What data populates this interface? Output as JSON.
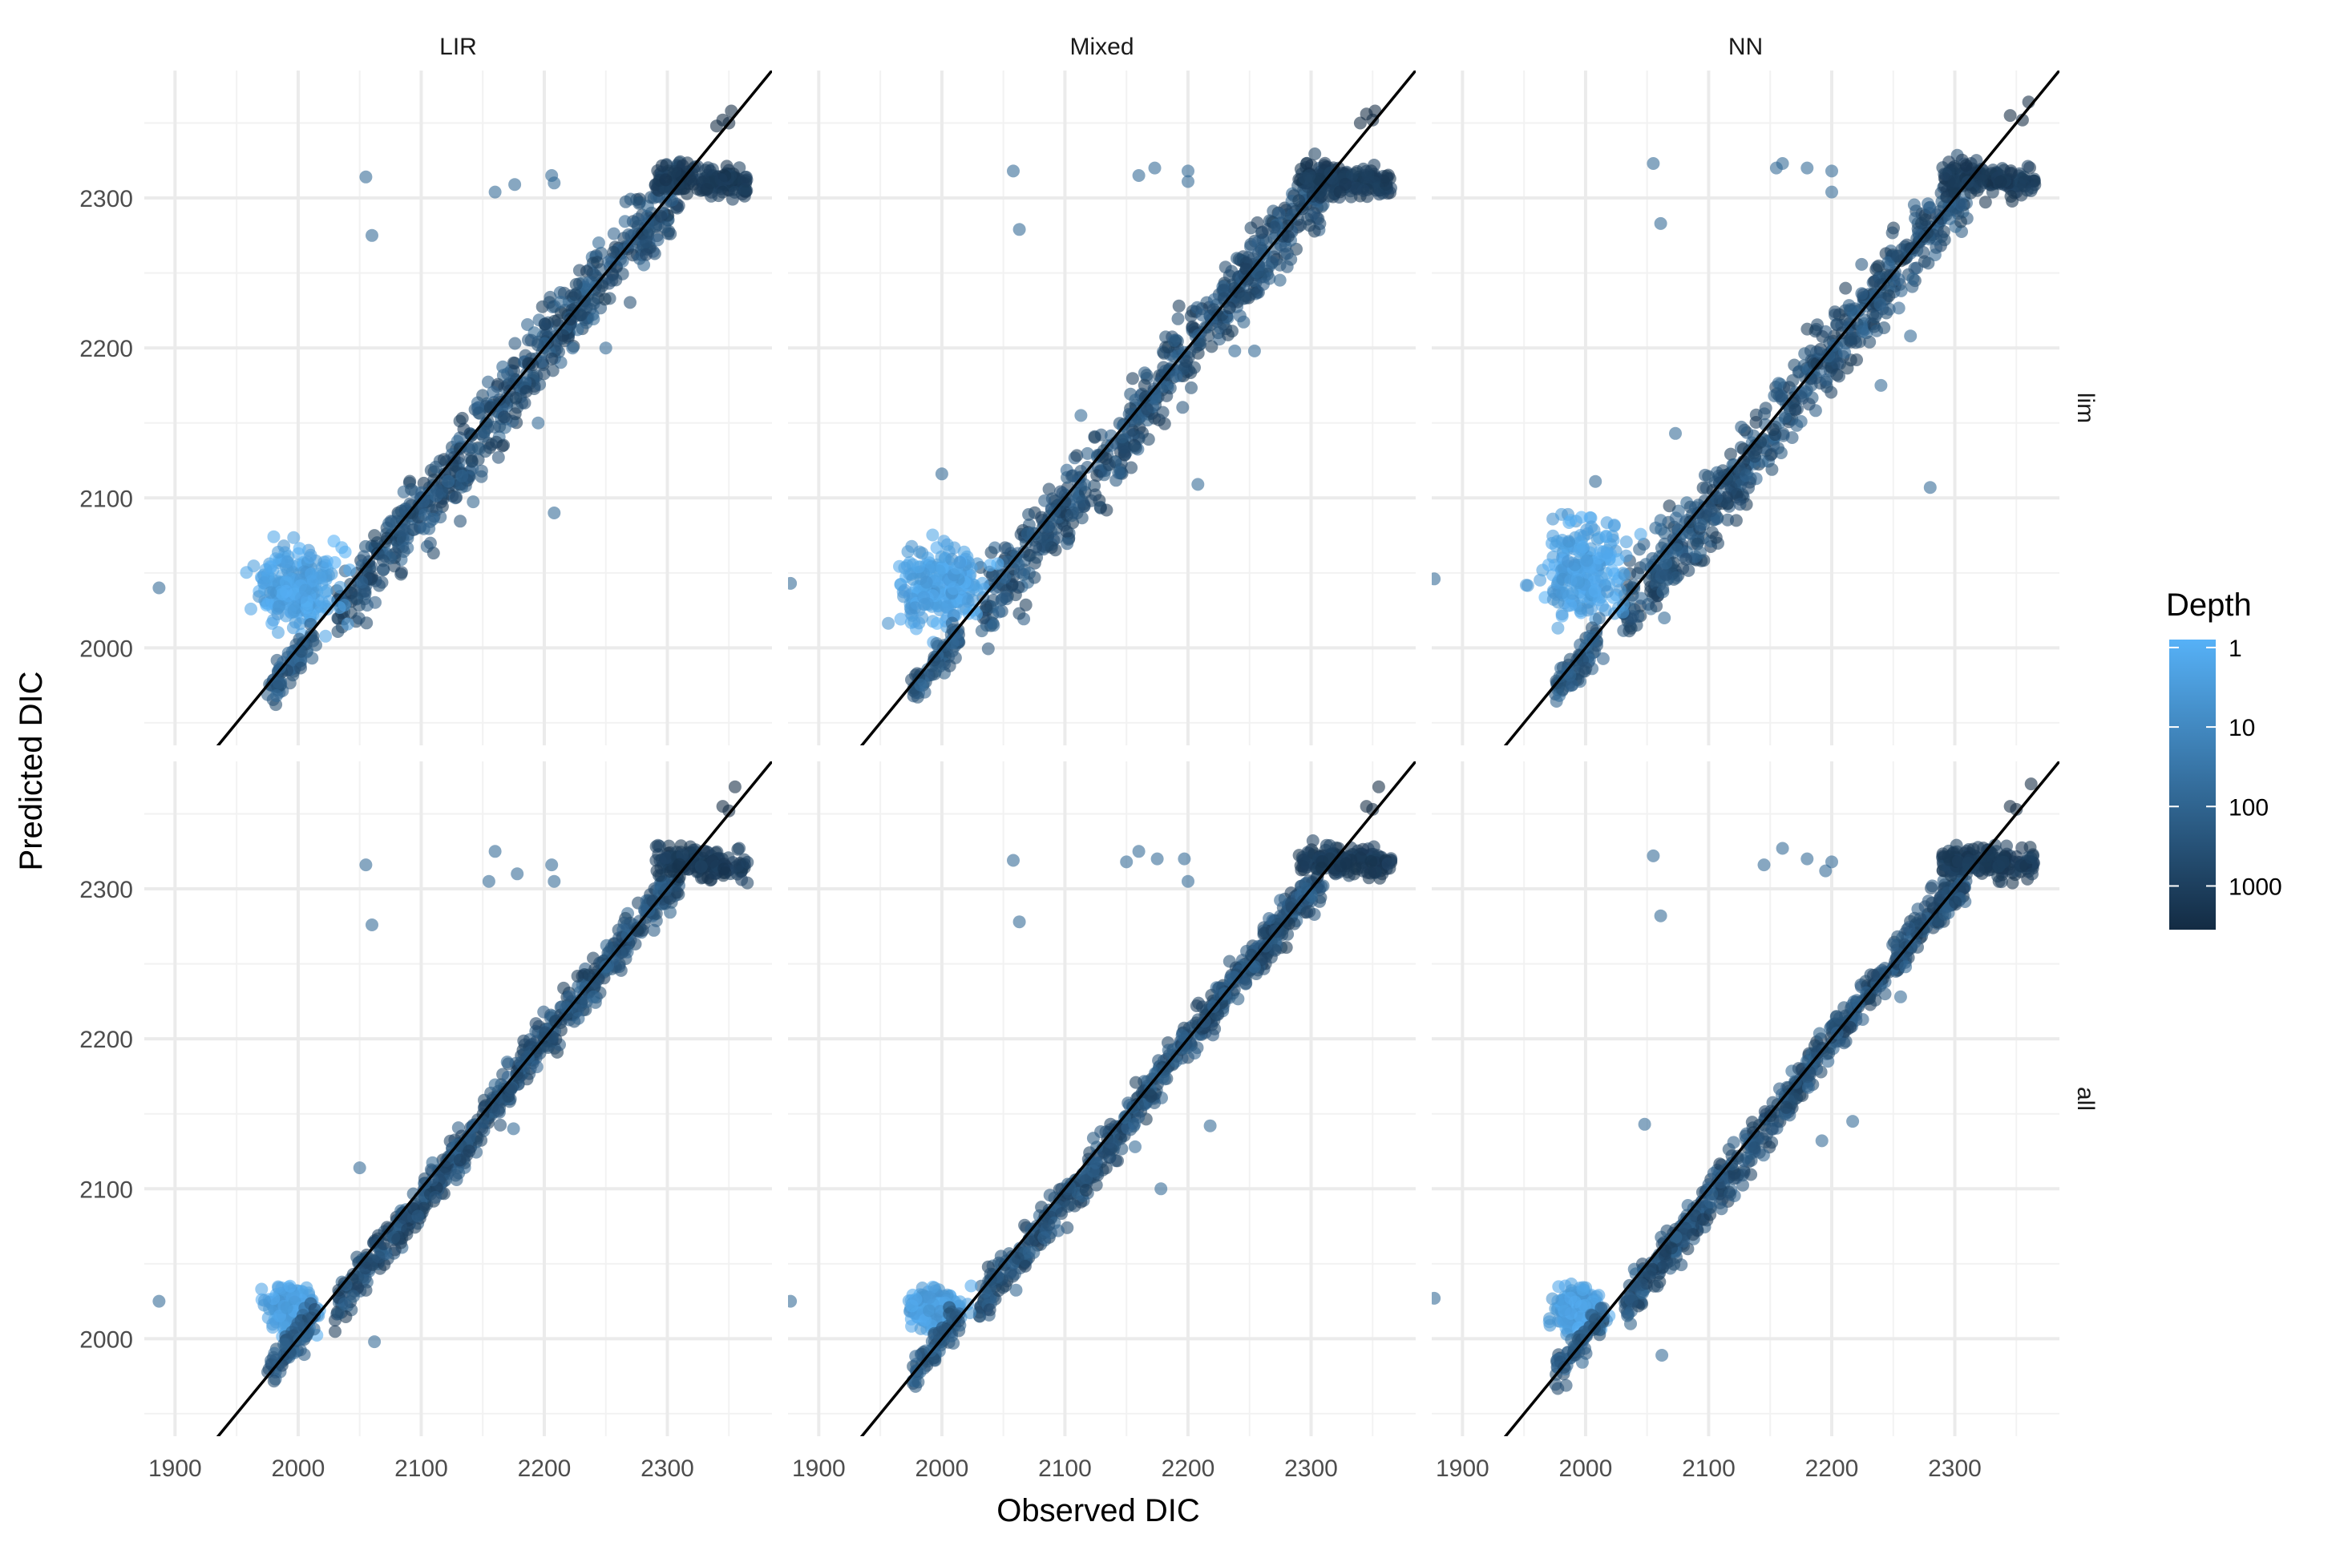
{
  "chart_data": {
    "type": "scatter",
    "facet_columns": [
      "LIR",
      "Mixed",
      "NN"
    ],
    "facet_rows": [
      "lim",
      "all"
    ],
    "xlabel": "Observed DIC",
    "ylabel": "Predicted DIC",
    "x_ticks": [
      1900,
      2000,
      2100,
      2200,
      2300
    ],
    "y_ticks": [
      2000,
      2100,
      2200,
      2300
    ],
    "xlim": [
      1875,
      2385
    ],
    "ylim": [
      1935,
      2385
    ],
    "reference_line": "y = x",
    "grid": true,
    "legend": {
      "title": "Depth",
      "position": "right",
      "scale": "log",
      "ticks": [
        1,
        10,
        100,
        1000
      ],
      "color_low": "#56B1F7",
      "color_high": "#132B43"
    },
    "panels": [
      {
        "column": "LIR",
        "row": "lim",
        "outliers": [
          [
            1887,
            2040
          ],
          [
            2055,
            2314
          ],
          [
            2060,
            2275
          ],
          [
            2160,
            2304
          ],
          [
            2176,
            2309
          ],
          [
            2206,
            2315
          ],
          [
            2208,
            2310
          ],
          [
            2122,
            2111
          ],
          [
            2208,
            2090
          ],
          [
            2223,
            2200
          ],
          [
            2250,
            2200
          ],
          [
            2195,
            2150
          ]
        ],
        "points": [
          [
            2345,
            2352
          ],
          [
            2350,
            2350
          ],
          [
            2352,
            2358
          ],
          [
            2340,
            2348
          ]
        ]
      },
      {
        "column": "Mixed",
        "row": "lim",
        "outliers": [
          [
            1877,
            2043
          ],
          [
            2058,
            2318
          ],
          [
            2063,
            2279
          ],
          [
            2160,
            2315
          ],
          [
            2173,
            2320
          ],
          [
            2200,
            2318
          ],
          [
            2200,
            2311
          ],
          [
            2113,
            2155
          ],
          [
            2147,
            2148
          ],
          [
            2208,
            2109
          ],
          [
            2238,
            2198
          ],
          [
            2254,
            2198
          ],
          [
            2042,
            2015
          ],
          [
            2000,
            2116
          ]
        ],
        "points": [
          [
            2345,
            2356
          ],
          [
            2350,
            2352
          ],
          [
            2352,
            2358
          ],
          [
            2340,
            2350
          ]
        ]
      },
      {
        "column": "NN",
        "row": "lim",
        "outliers": [
          [
            1877,
            2046
          ],
          [
            2055,
            2323
          ],
          [
            2061,
            2283
          ],
          [
            2155,
            2320
          ],
          [
            2160,
            2323
          ],
          [
            2180,
            2320
          ],
          [
            2200,
            2318
          ],
          [
            2200,
            2304
          ],
          [
            2073,
            2143
          ],
          [
            2008,
            2111
          ],
          [
            2061,
            2085
          ],
          [
            2057,
            2080
          ],
          [
            2064,
            2020
          ],
          [
            2225,
            2211
          ],
          [
            2264,
            2208
          ],
          [
            2280,
            2107
          ],
          [
            2240,
            2175
          ]
        ],
        "points": [
          [
            2355,
            2352
          ],
          [
            2345,
            2355
          ],
          [
            2360,
            2364
          ]
        ]
      },
      {
        "column": "LIR",
        "row": "all",
        "outliers": [
          [
            1887,
            2025
          ],
          [
            2055,
            2316
          ],
          [
            2060,
            2276
          ],
          [
            2160,
            2325
          ],
          [
            2155,
            2305
          ],
          [
            2178,
            2310
          ],
          [
            2206,
            2316
          ],
          [
            2208,
            2305
          ],
          [
            2050,
            2114
          ],
          [
            2062,
            1998
          ],
          [
            2175,
            2140
          ],
          [
            2240,
            2228
          ],
          [
            2250,
            2248
          ]
        ],
        "points": [
          [
            2345,
            2355
          ],
          [
            2350,
            2352
          ],
          [
            2355,
            2368
          ]
        ]
      },
      {
        "column": "Mixed",
        "row": "all",
        "outliers": [
          [
            1877,
            2025
          ],
          [
            2058,
            2319
          ],
          [
            2063,
            2278
          ],
          [
            2160,
            2325
          ],
          [
            2150,
            2318
          ],
          [
            2175,
            2320
          ],
          [
            2197,
            2320
          ],
          [
            2200,
            2305
          ],
          [
            2218,
            2142
          ],
          [
            2157,
            2128
          ],
          [
            2178,
            2100
          ],
          [
            1991,
            1992
          ],
          [
            2254,
            2248
          ],
          [
            2230,
            2230
          ]
        ],
        "points": [
          [
            2345,
            2355
          ],
          [
            2350,
            2353
          ],
          [
            2355,
            2368
          ]
        ]
      },
      {
        "column": "NN",
        "row": "all",
        "outliers": [
          [
            1877,
            2027
          ],
          [
            2055,
            2322
          ],
          [
            2061,
            2282
          ],
          [
            2160,
            2327
          ],
          [
            2145,
            2316
          ],
          [
            2180,
            2320
          ],
          [
            2200,
            2318
          ],
          [
            2195,
            2312
          ],
          [
            2048,
            2143
          ],
          [
            2217,
            2145
          ],
          [
            2192,
            2132
          ],
          [
            2062,
            1989
          ],
          [
            2260,
            2248
          ],
          [
            2256,
            2228
          ]
        ],
        "points": [
          [
            2345,
            2355
          ],
          [
            2350,
            2353
          ],
          [
            2362,
            2370
          ]
        ]
      }
    ]
  }
}
